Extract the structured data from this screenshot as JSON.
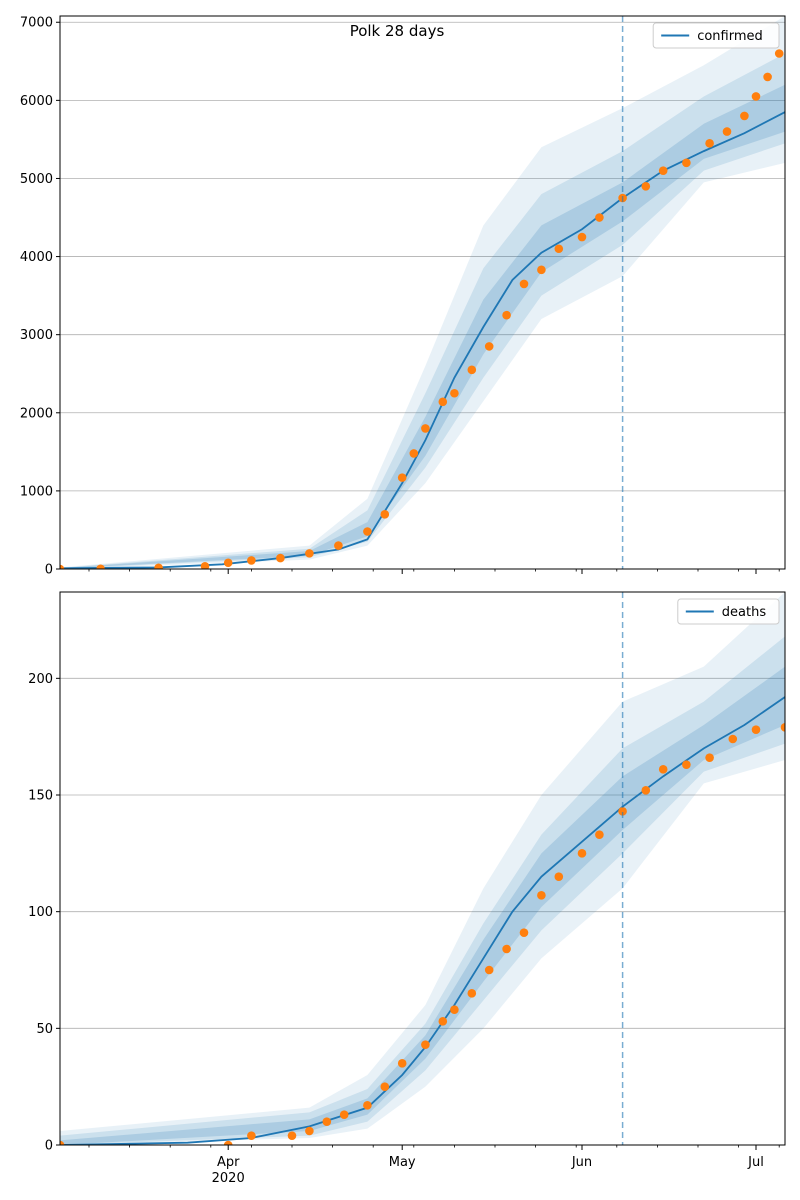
{
  "chart_data": [
    {
      "type": "line",
      "title": "Polk 28 days",
      "xlabel": "",
      "ylabel": "",
      "x_axis": {
        "type": "date",
        "range": [
          "2020-03-03",
          "2020-07-06"
        ],
        "year_label": "2020"
      },
      "xticks": [
        {
          "date": "2020-04-01",
          "label": "Apr"
        },
        {
          "date": "2020-05-01",
          "label": "May"
        },
        {
          "date": "2020-06-01",
          "label": "Jun"
        },
        {
          "date": "2020-07-01",
          "label": "Jul"
        }
      ],
      "ylim": [
        0,
        7080
      ],
      "yticks": [
        0,
        1000,
        2000,
        3000,
        4000,
        5000,
        6000,
        7000
      ],
      "grid": "horizontal",
      "legend": {
        "position": "top-right",
        "entries": [
          "confirmed"
        ]
      },
      "forecast_start": "2020-06-08",
      "colors": {
        "model": "#1f77b4",
        "band": "#1f77b4",
        "observed": "#ff7f0e",
        "forecast_line": "#1f77b4"
      },
      "series": [
        {
          "name": "confirmed",
          "style": "line",
          "points": [
            [
              "2020-03-03",
              10
            ],
            [
              "2020-03-20",
              20
            ],
            [
              "2020-03-31",
              60
            ],
            [
              "2020-04-10",
              140
            ],
            [
              "2020-04-20",
              250
            ],
            [
              "2020-04-25",
              380
            ],
            [
              "2020-05-01",
              1100
            ],
            [
              "2020-05-05",
              1650
            ],
            [
              "2020-05-10",
              2450
            ],
            [
              "2020-05-15",
              3100
            ],
            [
              "2020-05-20",
              3700
            ],
            [
              "2020-05-25",
              4050
            ],
            [
              "2020-06-01",
              4350
            ],
            [
              "2020-06-08",
              4750
            ],
            [
              "2020-06-15",
              5100
            ],
            [
              "2020-06-22",
              5350
            ],
            [
              "2020-06-29",
              5580
            ],
            [
              "2020-07-06",
              5850
            ]
          ]
        },
        {
          "style": "dots",
          "points": [
            [
              "2020-03-03",
              0
            ],
            [
              "2020-03-10",
              3
            ],
            [
              "2020-03-20",
              15
            ],
            [
              "2020-03-28",
              35
            ],
            [
              "2020-04-01",
              80
            ],
            [
              "2020-04-05",
              110
            ],
            [
              "2020-04-10",
              140
            ],
            [
              "2020-04-15",
              200
            ],
            [
              "2020-04-20",
              300
            ],
            [
              "2020-04-25",
              480
            ],
            [
              "2020-04-28",
              700
            ],
            [
              "2020-05-01",
              1170
            ],
            [
              "2020-05-03",
              1480
            ],
            [
              "2020-05-05",
              1800
            ],
            [
              "2020-05-08",
              2140
            ],
            [
              "2020-05-10",
              2250
            ],
            [
              "2020-05-13",
              2550
            ],
            [
              "2020-05-16",
              2850
            ],
            [
              "2020-05-19",
              3250
            ],
            [
              "2020-05-22",
              3650
            ],
            [
              "2020-05-25",
              3830
            ],
            [
              "2020-05-28",
              4100
            ],
            [
              "2020-06-01",
              4250
            ],
            [
              "2020-06-04",
              4500
            ],
            [
              "2020-06-08",
              4750
            ],
            [
              "2020-06-12",
              4900
            ],
            [
              "2020-06-15",
              5100
            ],
            [
              "2020-06-19",
              5200
            ],
            [
              "2020-06-23",
              5450
            ],
            [
              "2020-06-26",
              5600
            ],
            [
              "2020-06-29",
              5800
            ],
            [
              "2020-07-01",
              6050
            ],
            [
              "2020-07-03",
              6300
            ],
            [
              "2020-07-05",
              6600
            ]
          ]
        }
      ],
      "bands": [
        {
          "level": "outer",
          "upper": [
            [
              "2020-03-03",
              20
            ],
            [
              "2020-04-15",
              300
            ],
            [
              "2020-04-25",
              900
            ],
            [
              "2020-05-05",
              2600
            ],
            [
              "2020-05-15",
              4400
            ],
            [
              "2020-05-25",
              5400
            ],
            [
              "2020-06-08",
              5900
            ],
            [
              "2020-06-22",
              6450
            ],
            [
              "2020-07-06",
              7080
            ]
          ],
          "lower": [
            [
              "2020-03-03",
              0
            ],
            [
              "2020-04-15",
              120
            ],
            [
              "2020-04-25",
              300
            ],
            [
              "2020-05-05",
              1100
            ],
            [
              "2020-05-15",
              2150
            ],
            [
              "2020-05-25",
              3200
            ],
            [
              "2020-06-08",
              3750
            ],
            [
              "2020-06-22",
              4950
            ],
            [
              "2020-07-06",
              5200
            ]
          ]
        },
        {
          "level": "middle",
          "upper": [
            [
              "2020-03-03",
              15
            ],
            [
              "2020-04-15",
              260
            ],
            [
              "2020-04-25",
              750
            ],
            [
              "2020-05-05",
              2250
            ],
            [
              "2020-05-15",
              3850
            ],
            [
              "2020-05-25",
              4800
            ],
            [
              "2020-06-08",
              5350
            ],
            [
              "2020-06-22",
              6050
            ],
            [
              "2020-07-06",
              6600
            ]
          ],
          "lower": [
            [
              "2020-03-03",
              3
            ],
            [
              "2020-04-15",
              150
            ],
            [
              "2020-04-25",
              350
            ],
            [
              "2020-05-05",
              1300
            ],
            [
              "2020-05-15",
              2450
            ],
            [
              "2020-05-25",
              3500
            ],
            [
              "2020-06-08",
              4150
            ],
            [
              "2020-06-22",
              5100
            ],
            [
              "2020-07-06",
              5450
            ]
          ]
        },
        {
          "level": "inner",
          "upper": [
            [
              "2020-03-03",
              12
            ],
            [
              "2020-04-15",
              230
            ],
            [
              "2020-04-25",
              600
            ],
            [
              "2020-05-05",
              1950
            ],
            [
              "2020-05-15",
              3450
            ],
            [
              "2020-05-25",
              4400
            ],
            [
              "2020-06-08",
              4950
            ],
            [
              "2020-06-22",
              5700
            ],
            [
              "2020-07-06",
              6200
            ]
          ],
          "lower": [
            [
              "2020-03-03",
              6
            ],
            [
              "2020-04-15",
              170
            ],
            [
              "2020-04-25",
              420
            ],
            [
              "2020-05-05",
              1450
            ],
            [
              "2020-05-15",
              2750
            ],
            [
              "2020-05-25",
              3800
            ],
            [
              "2020-06-08",
              4450
            ],
            [
              "2020-06-22",
              5250
            ],
            [
              "2020-07-06",
              5600
            ]
          ]
        }
      ]
    },
    {
      "type": "line",
      "title": "",
      "xlabel": "",
      "ylabel": "",
      "x_axis": {
        "type": "date",
        "range": [
          "2020-03-03",
          "2020-07-06"
        ],
        "year_label": "2020"
      },
      "xticks": [
        {
          "date": "2020-04-01",
          "label": "Apr"
        },
        {
          "date": "2020-05-01",
          "label": "May"
        },
        {
          "date": "2020-06-01",
          "label": "Jun"
        },
        {
          "date": "2020-07-01",
          "label": "Jul"
        }
      ],
      "ylim": [
        0,
        237
      ],
      "yticks": [
        0,
        50,
        100,
        150,
        200
      ],
      "grid": "horizontal",
      "legend": {
        "position": "top-right",
        "entries": [
          "deaths"
        ]
      },
      "forecast_start": "2020-06-08",
      "colors": {
        "model": "#1f77b4",
        "band": "#1f77b4",
        "observed": "#ff7f0e",
        "forecast_line": "#1f77b4"
      },
      "series": [
        {
          "name": "deaths",
          "style": "line",
          "points": [
            [
              "2020-03-03",
              0
            ],
            [
              "2020-03-25",
              1
            ],
            [
              "2020-04-05",
              3
            ],
            [
              "2020-04-15",
              8
            ],
            [
              "2020-04-25",
              16
            ],
            [
              "2020-05-01",
              30
            ],
            [
              "2020-05-05",
              42
            ],
            [
              "2020-05-10",
              60
            ],
            [
              "2020-05-15",
              80
            ],
            [
              "2020-05-20",
              100
            ],
            [
              "2020-05-25",
              115
            ],
            [
              "2020-06-01",
              130
            ],
            [
              "2020-06-08",
              145
            ],
            [
              "2020-06-15",
              158
            ],
            [
              "2020-06-22",
              170
            ],
            [
              "2020-06-29",
              180
            ],
            [
              "2020-07-06",
              192
            ]
          ]
        },
        {
          "style": "dots",
          "points": [
            [
              "2020-03-03",
              0
            ],
            [
              "2020-04-01",
              0
            ],
            [
              "2020-04-05",
              4
            ],
            [
              "2020-04-12",
              4
            ],
            [
              "2020-04-15",
              6
            ],
            [
              "2020-04-18",
              10
            ],
            [
              "2020-04-21",
              13
            ],
            [
              "2020-04-25",
              17
            ],
            [
              "2020-04-28",
              25
            ],
            [
              "2020-05-01",
              35
            ],
            [
              "2020-05-05",
              43
            ],
            [
              "2020-05-08",
              53
            ],
            [
              "2020-05-10",
              58
            ],
            [
              "2020-05-13",
              65
            ],
            [
              "2020-05-16",
              75
            ],
            [
              "2020-05-19",
              84
            ],
            [
              "2020-05-22",
              91
            ],
            [
              "2020-05-25",
              107
            ],
            [
              "2020-05-28",
              115
            ],
            [
              "2020-06-01",
              125
            ],
            [
              "2020-06-04",
              133
            ],
            [
              "2020-06-08",
              143
            ],
            [
              "2020-06-12",
              152
            ],
            [
              "2020-06-15",
              161
            ],
            [
              "2020-06-19",
              163
            ],
            [
              "2020-06-23",
              166
            ],
            [
              "2020-06-27",
              174
            ],
            [
              "2020-07-01",
              178
            ],
            [
              "2020-07-06",
              179
            ]
          ]
        }
      ],
      "bands": [
        {
          "level": "outer",
          "upper": [
            [
              "2020-03-03",
              6
            ],
            [
              "2020-04-15",
              16
            ],
            [
              "2020-04-25",
              30
            ],
            [
              "2020-05-05",
              60
            ],
            [
              "2020-05-15",
              110
            ],
            [
              "2020-05-25",
              150
            ],
            [
              "2020-06-08",
              190
            ],
            [
              "2020-06-22",
              205
            ],
            [
              "2020-07-06",
              237
            ]
          ],
          "lower": [
            [
              "2020-03-03",
              0
            ],
            [
              "2020-04-15",
              3
            ],
            [
              "2020-04-25",
              7
            ],
            [
              "2020-05-05",
              25
            ],
            [
              "2020-05-15",
              50
            ],
            [
              "2020-05-25",
              80
            ],
            [
              "2020-06-08",
              110
            ],
            [
              "2020-06-22",
              155
            ],
            [
              "2020-07-06",
              165
            ]
          ]
        },
        {
          "level": "middle",
          "upper": [
            [
              "2020-03-03",
              4
            ],
            [
              "2020-04-15",
              14
            ],
            [
              "2020-04-25",
              24
            ],
            [
              "2020-05-05",
              52
            ],
            [
              "2020-05-15",
              95
            ],
            [
              "2020-05-25",
              133
            ],
            [
              "2020-06-08",
              170
            ],
            [
              "2020-06-22",
              190
            ],
            [
              "2020-07-06",
              218
            ]
          ],
          "lower": [
            [
              "2020-03-03",
              0
            ],
            [
              "2020-04-15",
              4
            ],
            [
              "2020-04-25",
              10
            ],
            [
              "2020-05-05",
              32
            ],
            [
              "2020-05-15",
              62
            ],
            [
              "2020-05-25",
              92
            ],
            [
              "2020-06-08",
              125
            ],
            [
              "2020-06-22",
              160
            ],
            [
              "2020-07-06",
              172
            ]
          ]
        },
        {
          "level": "inner",
          "upper": [
            [
              "2020-03-03",
              2
            ],
            [
              "2020-04-15",
              11
            ],
            [
              "2020-04-25",
              20
            ],
            [
              "2020-05-05",
              47
            ],
            [
              "2020-05-15",
              88
            ],
            [
              "2020-05-25",
              125
            ],
            [
              "2020-06-08",
              158
            ],
            [
              "2020-06-22",
              180
            ],
            [
              "2020-07-06",
              205
            ]
          ],
          "lower": [
            [
              "2020-03-03",
              0
            ],
            [
              "2020-04-15",
              6
            ],
            [
              "2020-04-25",
              13
            ],
            [
              "2020-05-05",
              37
            ],
            [
              "2020-05-15",
              70
            ],
            [
              "2020-05-25",
              102
            ],
            [
              "2020-06-08",
              135
            ],
            [
              "2020-06-22",
              165
            ],
            [
              "2020-07-06",
              180
            ]
          ]
        }
      ]
    }
  ]
}
